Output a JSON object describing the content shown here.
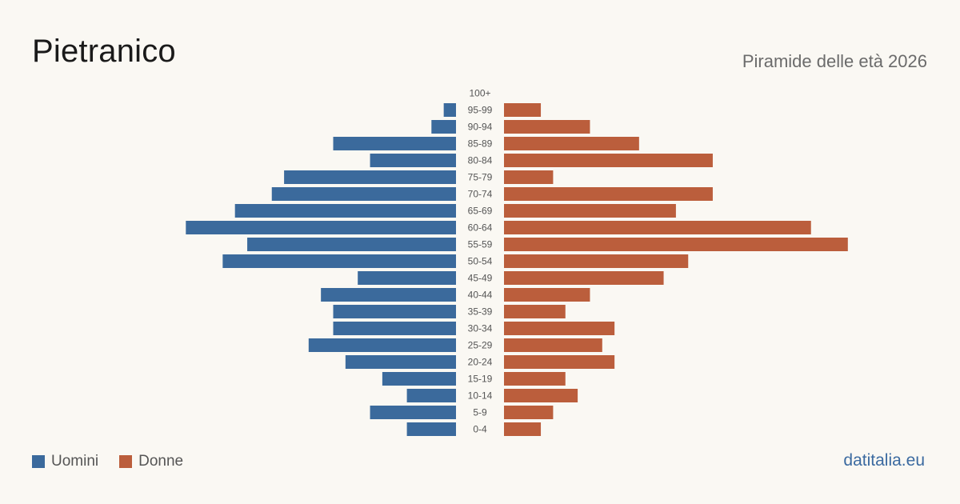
{
  "header": {
    "title": "Pietranico",
    "subtitle": "Piramide delle età 2026"
  },
  "legend": {
    "men_label": "Uomini",
    "women_label": "Donne"
  },
  "brand": "datitalia.eu",
  "colors": {
    "men": "#3b6a9c",
    "women": "#bb5e3c"
  },
  "chart_data": {
    "type": "bar",
    "orientation": "horizontal-population-pyramid",
    "categories": [
      "100+",
      "95-99",
      "90-94",
      "85-89",
      "80-84",
      "75-79",
      "70-74",
      "65-69",
      "60-64",
      "55-59",
      "50-54",
      "45-49",
      "40-44",
      "35-39",
      "30-34",
      "25-29",
      "20-24",
      "15-19",
      "10-14",
      "5-9",
      "0-4"
    ],
    "series": [
      {
        "name": "Uomini",
        "side": "left",
        "values": [
          0,
          1,
          2,
          10,
          7,
          14,
          15,
          18,
          22,
          17,
          19,
          8,
          11,
          10,
          10,
          12,
          9,
          6,
          4,
          7,
          4
        ]
      },
      {
        "name": "Donne",
        "side": "right",
        "values": [
          0,
          3,
          7,
          11,
          17,
          4,
          17,
          14,
          25,
          28,
          15,
          13,
          7,
          5,
          9,
          8,
          9,
          5,
          6,
          4,
          3
        ]
      }
    ],
    "legend_position": "bottom-left",
    "grid": false
  }
}
